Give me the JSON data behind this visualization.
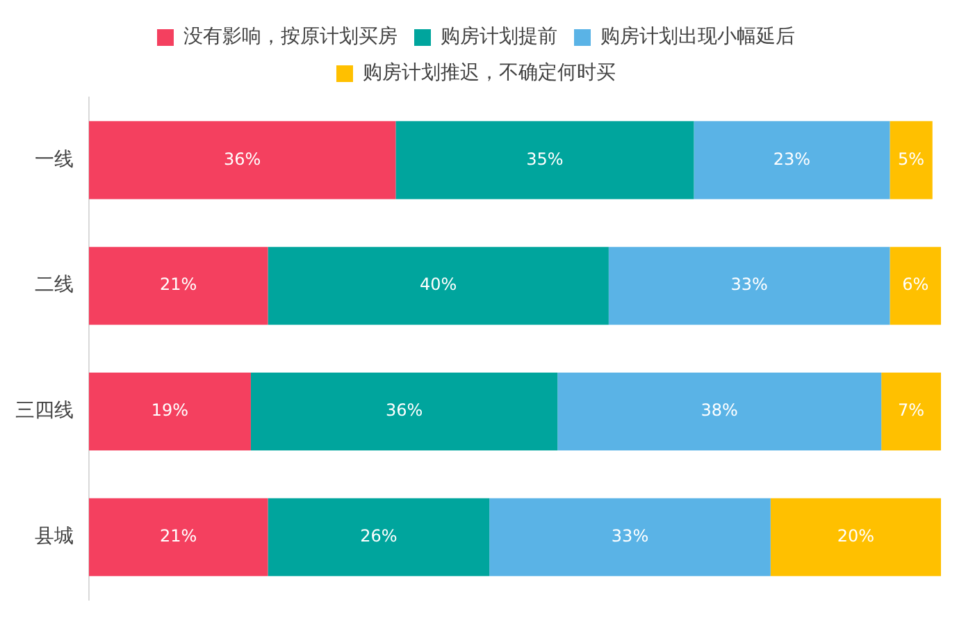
{
  "chart_data": {
    "type": "bar",
    "orientation": "horizontal",
    "stacked": true,
    "categories": [
      "一线",
      "二线",
      "三四线",
      "县城"
    ],
    "series": [
      {
        "name": "没有影响，按原计划买房",
        "color": "#f4405f",
        "values": [
          36,
          21,
          19,
          21
        ],
        "value_labels": [
          "36%",
          "21%",
          "19%",
          "21%"
        ]
      },
      {
        "name": "购房计划提前",
        "color": "#00a59d",
        "values": [
          35,
          40,
          36,
          26
        ],
        "value_labels": [
          "35%",
          "40%",
          "36%",
          "26%"
        ]
      },
      {
        "name": "购房计划出现小幅延后",
        "color": "#5ab3e6",
        "values": [
          23,
          33,
          38,
          33
        ],
        "value_labels": [
          "23%",
          "33%",
          "38%",
          "33%"
        ]
      },
      {
        "name": "购房计划推迟，不确定何时买",
        "color": "#ffc000",
        "values": [
          5,
          6,
          7,
          20
        ],
        "value_labels": [
          "5%",
          "6%",
          "7%",
          "20%"
        ]
      }
    ],
    "legend": "top",
    "tick_labels": "y"
  }
}
